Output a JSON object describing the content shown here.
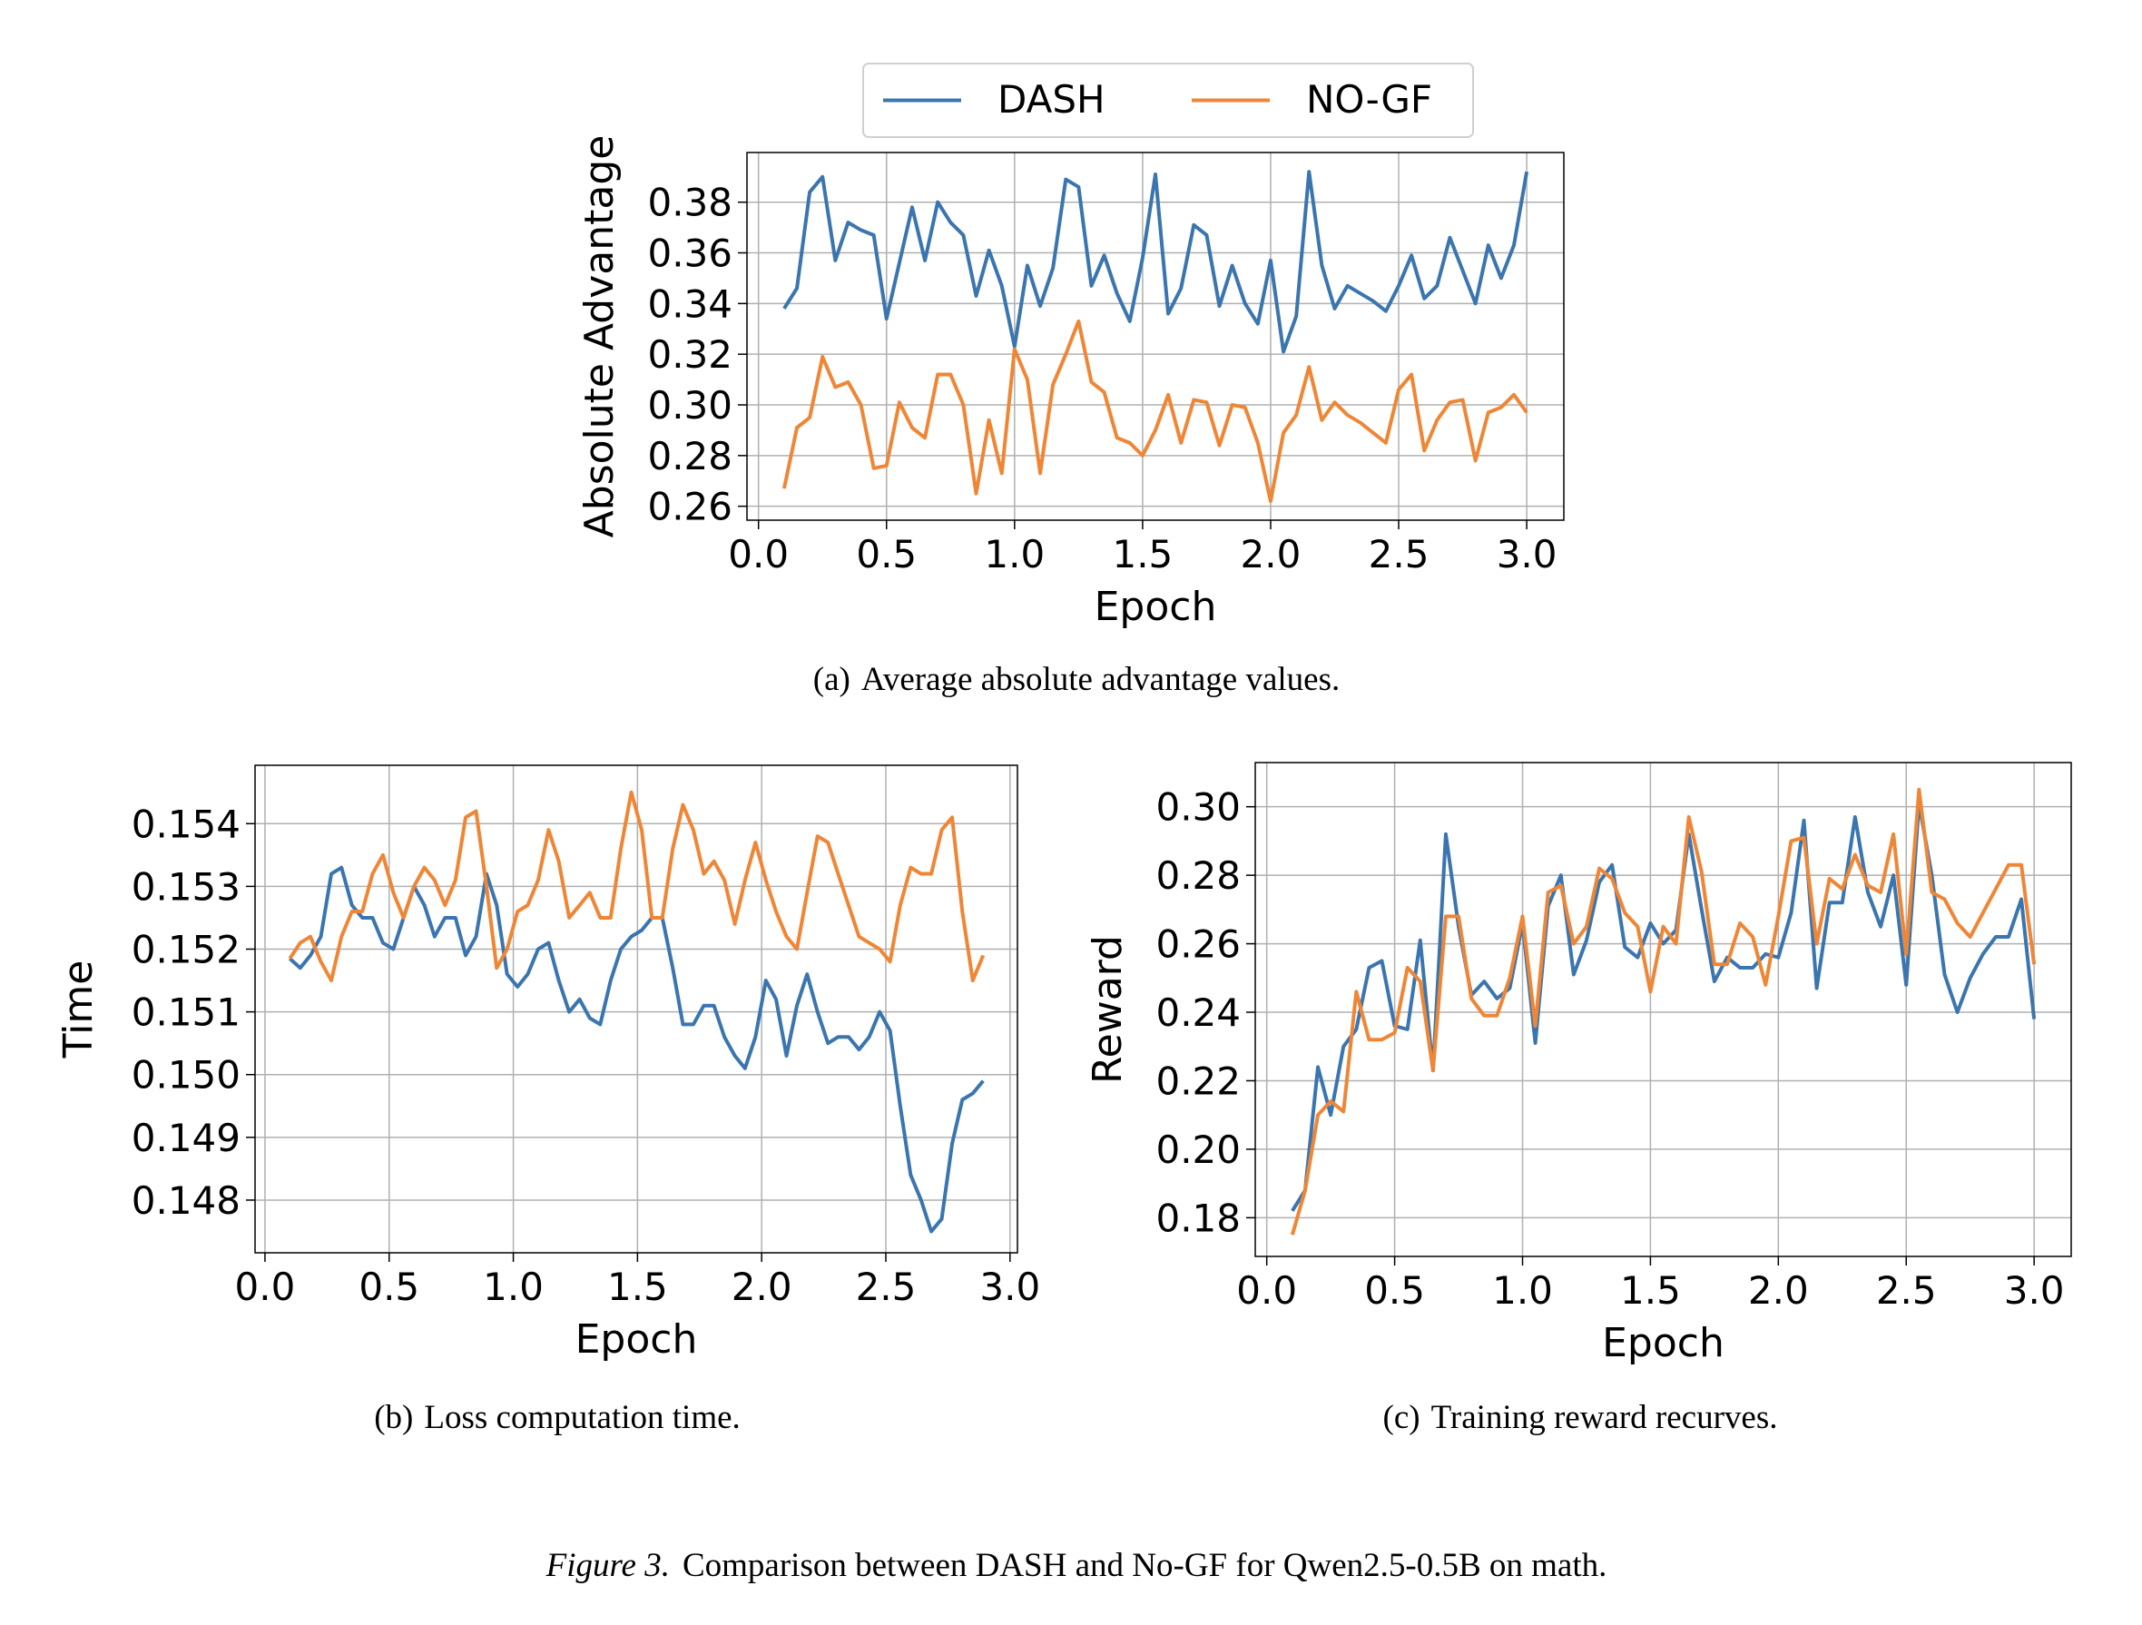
{
  "caption": {
    "label": "Figure 3.",
    "text": "Comparison between DASH and No-GF for Qwen2.5-0.5B on math."
  },
  "chart_data": [
    {
      "type": "line",
      "caption": {
        "label": "(a)",
        "text": "Average absolute advantage values."
      },
      "xlabel": "Epoch",
      "ylabel": "Absolute Advantage",
      "grid": true,
      "legend": "upper center outside",
      "xlim": [
        -0.045,
        3.145
      ],
      "xticks": [
        {
          "value": 0,
          "label": "0.0"
        },
        0.5,
        {
          "value": 1,
          "label": "1.0"
        },
        1.5,
        {
          "value": 2,
          "label": "2.0"
        },
        2.5,
        {
          "value": 3,
          "label": "3.0"
        }
      ],
      "ylim": [
        0.2545,
        0.3996
      ],
      "yticks": [
        0.26,
        0.28,
        {
          "value": 0.3,
          "label": "0.30"
        },
        0.32,
        0.34,
        0.36,
        0.38
      ],
      "x": [
        0.1,
        0.15,
        0.2,
        0.25,
        0.3,
        0.35,
        0.4,
        0.45,
        0.5,
        0.55,
        0.6,
        0.65,
        0.7,
        0.75,
        0.8,
        0.85,
        0.9,
        0.95,
        1.0,
        1.05,
        1.1,
        1.15,
        1.2,
        1.25,
        1.3,
        1.35,
        1.4,
        1.45,
        1.5,
        1.55,
        1.6,
        1.65,
        1.7,
        1.75,
        1.8,
        1.85,
        1.9,
        1.95,
        2.0,
        2.05,
        2.1,
        2.15,
        2.2,
        2.25,
        2.3,
        2.35,
        2.4,
        2.45,
        2.5,
        2.55,
        2.6,
        2.65,
        2.7,
        2.75,
        2.8,
        2.85,
        2.9,
        2.95,
        3.0
      ],
      "series": [
        {
          "name": "DASH",
          "color": "#3b75af",
          "values": [
            0.338,
            0.346,
            0.384,
            0.39,
            0.357,
            0.372,
            0.369,
            0.367,
            0.334,
            0.356,
            0.378,
            0.357,
            0.38,
            0.372,
            0.367,
            0.343,
            0.361,
            0.347,
            0.323,
            0.355,
            0.339,
            0.354,
            0.389,
            0.386,
            0.347,
            0.359,
            0.344,
            0.333,
            0.358,
            0.391,
            0.336,
            0.346,
            0.371,
            0.367,
            0.339,
            0.355,
            0.34,
            0.332,
            0.357,
            0.321,
            0.335,
            0.392,
            0.355,
            0.338,
            0.347,
            0.344,
            0.341,
            0.337,
            0.347,
            0.359,
            0.342,
            0.347,
            0.366,
            0.353,
            0.34,
            0.363,
            0.35,
            0.363,
            0.392
          ]
        },
        {
          "name": "NO-GF",
          "color": "#ef8636",
          "values": [
            0.267,
            0.291,
            0.295,
            0.319,
            0.307,
            0.309,
            0.3,
            0.275,
            0.276,
            0.301,
            0.291,
            0.287,
            0.312,
            0.312,
            0.3,
            0.265,
            0.294,
            0.273,
            0.322,
            0.31,
            0.273,
            0.308,
            0.32,
            0.333,
            0.309,
            0.305,
            0.287,
            0.285,
            0.28,
            0.29,
            0.304,
            0.285,
            0.302,
            0.301,
            0.284,
            0.3,
            0.299,
            0.285,
            0.262,
            0.289,
            0.296,
            0.315,
            0.294,
            0.301,
            0.296,
            0.293,
            0.289,
            0.285,
            0.306,
            0.312,
            0.282,
            0.294,
            0.301,
            0.302,
            0.278,
            0.297,
            0.299,
            0.304,
            0.297
          ]
        }
      ]
    },
    {
      "type": "line",
      "caption": {
        "label": "(b)",
        "text": "Loss computation time."
      },
      "xlabel": "Epoch",
      "ylabel": "Time",
      "grid": true,
      "xlim": [
        -0.04,
        3.03
      ],
      "xticks": [
        {
          "value": 0,
          "label": "0.0"
        },
        0.5,
        {
          "value": 1,
          "label": "1.0"
        },
        1.5,
        {
          "value": 2,
          "label": "2.0"
        },
        2.5,
        {
          "value": 3,
          "label": "3.0"
        }
      ],
      "ylim": [
        0.14716,
        0.15493
      ],
      "yticks": [
        0.148,
        0.149,
        {
          "value": 0.15,
          "label": "0.150"
        },
        0.151,
        0.152,
        0.153,
        0.154
      ],
      "x": [
        0.1,
        0.142,
        0.183,
        0.225,
        0.267,
        0.308,
        0.35,
        0.392,
        0.433,
        0.475,
        0.517,
        0.558,
        0.6,
        0.642,
        0.683,
        0.725,
        0.767,
        0.808,
        0.85,
        0.892,
        0.933,
        0.975,
        1.017,
        1.058,
        1.1,
        1.142,
        1.183,
        1.225,
        1.267,
        1.308,
        1.35,
        1.392,
        1.433,
        1.475,
        1.517,
        1.558,
        1.6,
        1.642,
        1.683,
        1.725,
        1.767,
        1.808,
        1.85,
        1.892,
        1.933,
        1.975,
        2.017,
        2.058,
        2.1,
        2.142,
        2.183,
        2.225,
        2.267,
        2.308,
        2.35,
        2.392,
        2.433,
        2.475,
        2.517,
        2.558,
        2.6,
        2.642,
        2.683,
        2.725,
        2.767,
        2.808,
        2.85,
        2.892
      ],
      "series": [
        {
          "color": "#3b75af",
          "values": [
            0.15185,
            0.1517,
            0.1519,
            0.1522,
            0.1532,
            0.1533,
            0.1527,
            0.1525,
            0.1525,
            0.1521,
            0.152,
            0.1525,
            0.153,
            0.1527,
            0.1522,
            0.1525,
            0.1525,
            0.1519,
            0.1522,
            0.1532,
            0.1527,
            0.1516,
            0.1514,
            0.1516,
            0.152,
            0.1521,
            0.1515,
            0.151,
            0.1512,
            0.1509,
            0.1508,
            0.1515,
            0.152,
            0.1522,
            0.1523,
            0.1525,
            0.1525,
            0.1517,
            0.1508,
            0.1508,
            0.1511,
            0.1511,
            0.1506,
            0.1503,
            0.1501,
            0.1506,
            0.1515,
            0.1512,
            0.1503,
            0.1511,
            0.1516,
            0.151,
            0.1505,
            0.1506,
            0.1506,
            0.1504,
            0.1506,
            0.151,
            0.1507,
            0.1495,
            0.1484,
            0.148,
            0.1475,
            0.1477,
            0.1489,
            0.1496,
            0.1497,
            0.1499
          ]
        },
        {
          "color": "#ef8636",
          "values": [
            0.15185,
            0.1521,
            0.1522,
            0.1518,
            0.1515,
            0.1522,
            0.1526,
            0.1526,
            0.1532,
            0.1535,
            0.1529,
            0.1525,
            0.153,
            0.1533,
            0.1531,
            0.1527,
            0.1531,
            0.1541,
            0.1542,
            0.153,
            0.1517,
            0.152,
            0.1526,
            0.1527,
            0.1531,
            0.1539,
            0.1534,
            0.1525,
            0.1527,
            0.1529,
            0.1525,
            0.1525,
            0.1536,
            0.1545,
            0.1539,
            0.1525,
            0.1525,
            0.1536,
            0.1543,
            0.1539,
            0.1532,
            0.1534,
            0.1531,
            0.1524,
            0.1531,
            0.1537,
            0.1531,
            0.1526,
            0.1522,
            0.152,
            0.1529,
            0.1538,
            0.1537,
            0.1532,
            0.1527,
            0.1522,
            0.1521,
            0.152,
            0.1518,
            0.1527,
            0.1533,
            0.1532,
            0.1532,
            0.1539,
            0.1541,
            0.1526,
            0.1515,
            0.1519
          ]
        }
      ]
    },
    {
      "type": "line",
      "caption": {
        "label": "(c)",
        "text": "Training reward recurves."
      },
      "xlabel": "Epoch",
      "ylabel": "Reward",
      "grid": true,
      "xlim": [
        -0.045,
        3.145
      ],
      "xticks": [
        {
          "value": 0,
          "label": "0.0"
        },
        0.5,
        {
          "value": 1,
          "label": "1.0"
        },
        1.5,
        {
          "value": 2,
          "label": "2.0"
        },
        2.5,
        {
          "value": 3,
          "label": "3.0"
        }
      ],
      "ylim": [
        0.1687,
        0.3129
      ],
      "yticks": [
        0.18,
        {
          "value": 0.2,
          "label": "0.20"
        },
        0.22,
        0.24,
        0.26,
        0.28,
        {
          "value": 0.3,
          "label": "0.30"
        }
      ],
      "x": [
        0.1,
        0.15,
        0.2,
        0.25,
        0.3,
        0.35,
        0.4,
        0.45,
        0.5,
        0.55,
        0.6,
        0.65,
        0.7,
        0.75,
        0.8,
        0.85,
        0.9,
        0.95,
        1.0,
        1.05,
        1.1,
        1.15,
        1.2,
        1.25,
        1.3,
        1.35,
        1.4,
        1.45,
        1.5,
        1.55,
        1.6,
        1.65,
        1.7,
        1.75,
        1.8,
        1.85,
        1.9,
        1.95,
        2.0,
        2.05,
        2.1,
        2.15,
        2.2,
        2.25,
        2.3,
        2.35,
        2.4,
        2.45,
        2.5,
        2.55,
        2.6,
        2.65,
        2.7,
        2.75,
        2.8,
        2.85,
        2.9,
        2.95,
        3.0
      ],
      "series": [
        {
          "color": "#3b75af",
          "values": [
            0.182,
            0.188,
            0.224,
            0.21,
            0.23,
            0.235,
            0.253,
            0.255,
            0.236,
            0.235,
            0.261,
            0.223,
            0.292,
            0.265,
            0.245,
            0.249,
            0.244,
            0.247,
            0.266,
            0.231,
            0.271,
            0.28,
            0.251,
            0.261,
            0.278,
            0.283,
            0.259,
            0.256,
            0.266,
            0.26,
            0.264,
            0.292,
            0.27,
            0.249,
            0.256,
            0.253,
            0.253,
            0.257,
            0.256,
            0.269,
            0.296,
            0.247,
            0.272,
            0.272,
            0.297,
            0.275,
            0.265,
            0.28,
            0.248,
            0.301,
            0.28,
            0.251,
            0.24,
            0.25,
            0.257,
            0.262,
            0.262,
            0.273,
            0.238
          ]
        },
        {
          "color": "#ef8636",
          "values": [
            0.175,
            0.188,
            0.21,
            0.214,
            0.211,
            0.246,
            0.232,
            0.232,
            0.234,
            0.253,
            0.249,
            0.223,
            0.268,
            0.268,
            0.244,
            0.239,
            0.239,
            0.25,
            0.268,
            0.236,
            0.275,
            0.277,
            0.26,
            0.265,
            0.282,
            0.279,
            0.269,
            0.265,
            0.246,
            0.265,
            0.26,
            0.297,
            0.281,
            0.254,
            0.254,
            0.266,
            0.262,
            0.248,
            0.268,
            0.29,
            0.291,
            0.26,
            0.279,
            0.276,
            0.286,
            0.277,
            0.275,
            0.292,
            0.257,
            0.305,
            0.275,
            0.273,
            0.266,
            0.262,
            0.269,
            0.276,
            0.283,
            0.283,
            0.254
          ]
        }
      ]
    }
  ]
}
